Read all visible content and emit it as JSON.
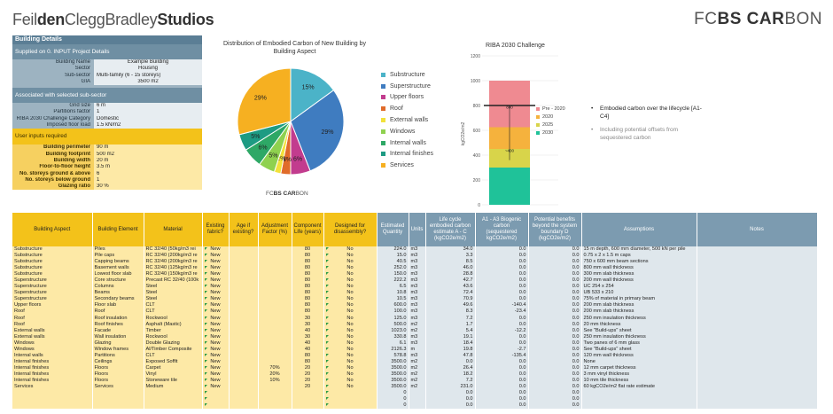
{
  "brand": {
    "left_parts": [
      "Feil",
      "den",
      "Clegg",
      "Bradley",
      "Studios"
    ],
    "right_light": "FC",
    "right_bold": "BS CAR",
    "right_tail": "BON"
  },
  "details": {
    "header": "Building Details",
    "supplied_note": "Supplied on 0. INPUT Project Details",
    "building": [
      {
        "k": "Building Name",
        "v": "Example Building",
        "center": true
      },
      {
        "k": "Sector",
        "v": "Housing",
        "center": true
      },
      {
        "k": "Sub-sector",
        "v": "Multi-family (6 - 15 storeys)",
        "center": false
      },
      {
        "k": "GIA",
        "v": "3500  m2",
        "center": true
      }
    ],
    "assoc_note": "Associated with selected sub-sector",
    "subsector": [
      {
        "k": "Grid size",
        "v": "6  m"
      },
      {
        "k": "Partitions factor",
        "v": "1"
      },
      {
        "k": "RIBA 2030 Challenge Category",
        "v": "Domestic"
      },
      {
        "k": "Imposed floor load",
        "v": "1.5  kN/m2"
      }
    ],
    "user_note": "User inputs required",
    "user_inputs": [
      {
        "k": "Building perimeter",
        "v": "90  m"
      },
      {
        "k": "Building footprint",
        "v": "500  m2"
      },
      {
        "k": "Building width",
        "v": "20  m"
      },
      {
        "k": "Floor-to-floor height",
        "v": "3.5  m"
      },
      {
        "k": "No. storeys ground & above",
        "v": "6"
      },
      {
        "k": "No. storeys below ground",
        "v": "1"
      },
      {
        "k": "Glazing ratio",
        "v": "30  %"
      }
    ]
  },
  "pie": {
    "title": "Distribution of Embodied Carbon of New Building by Building Aspect",
    "footer_light": "FC",
    "footer_bold": "BS CAR",
    "footer_tail": "BON",
    "slice_labels": [
      "15%",
      "29%",
      "6%",
      "3%",
      "2%",
      "5%",
      "6%",
      "5%",
      "29%"
    ]
  },
  "chart_data": [
    {
      "type": "pie",
      "title": "Distribution of Embodied Carbon of New Building by Building Aspect",
      "categories": [
        "Substructure",
        "Superstructure",
        "Upper floors",
        "Roof",
        "External walls",
        "Windows",
        "Internal walls",
        "Internal finishes",
        "Services"
      ],
      "values": [
        15,
        29,
        6,
        3,
        2,
        5,
        6,
        5,
        29
      ],
      "colors": [
        "#4bb3c8",
        "#3f7cc0",
        "#c23c8e",
        "#e06b2a",
        "#f2e13a",
        "#8fd14f",
        "#2ea866",
        "#1d9b83",
        "#f6b021"
      ]
    },
    {
      "type": "bar",
      "title": "RIBA 2030 Challenge",
      "ylabel": "kgCO2e/m2",
      "ylim": [
        0,
        1200
      ],
      "yticks": [
        0,
        200,
        400,
        600,
        800,
        1000,
        1200
      ],
      "series": [
        {
          "name": "Pre - 2020",
          "value": 1000,
          "color": "#ef8a91"
        },
        {
          "name": "2020",
          "value": 625,
          "color": "#f5b23d"
        },
        {
          "name": "2025",
          "value": 450,
          "color": "#d8d44a"
        },
        {
          "name": "2030",
          "value": 300,
          "color": "#1fc299"
        }
      ],
      "labels": [
        "800",
        "~400"
      ],
      "marker_value": 800
    }
  ],
  "riba": {
    "title": "RIBA 2030 Challenge",
    "ylabel": "kgCO2e/m2",
    "legend": [
      "Pre - 2020",
      "2020",
      "2025",
      "2030"
    ]
  },
  "notes": {
    "n1": "Embodied carbon over the lifecycle [A1-C4]",
    "n2": "Including potential offsets from sequestered carbon"
  },
  "table": {
    "headers": [
      "Building Aspect",
      "Building Element",
      "Material",
      "Existing fabric?",
      "Age if existing?",
      "Adjustment Factor (%)",
      "Component Life (years)",
      "Designed for disassembly?",
      "Estimated Quantity",
      "Units",
      "Life cycle embodied carbon estimate A - C (kgCO2e/m2)",
      "A1 - A3 Biogenic carbon (sequestered kgCO2e/m2)",
      "Potential benefits beyond the system boundary D (kgCO2e/m2)",
      "Assumptions",
      "Notes"
    ],
    "rows": [
      [
        "Substructure",
        "Piles",
        "RC 32/40 (50kg/m3 rei",
        "New",
        "",
        "",
        "80",
        "No",
        "224.0",
        "m3",
        "34.0",
        "0.0",
        "0.0",
        "15 m depth, 600 mm diameter, 500 kN per pile"
      ],
      [
        "Substructure",
        "Pile caps",
        "RC 32/40 (200kg/m3 re",
        "New",
        "",
        "",
        "80",
        "No",
        "15.0",
        "m3",
        "3.3",
        "0.0",
        "0.0",
        "0.75 x 2 x 1.5 m caps"
      ],
      [
        "Substructure",
        "Capping beams",
        "RC 32/40 (200kg/m3 re",
        "New",
        "",
        "",
        "80",
        "No",
        "40.5",
        "m3",
        "8.5",
        "0.0",
        "0.0",
        "750 x 600 mm beam sections"
      ],
      [
        "Substructure",
        "Basement walls",
        "RC 32/40 (125kg/m3 re",
        "New",
        "",
        "",
        "80",
        "No",
        "252.0",
        "m3",
        "46.0",
        "0.0",
        "0.0",
        "800 mm wall thickness"
      ],
      [
        "Substructure",
        "Lowest floor slab",
        "RC 32/40 (150kg/m3 re",
        "New",
        "",
        "",
        "80",
        "No",
        "150.0",
        "m3",
        "28.8",
        "0.0",
        "0.0",
        "300 mm slab thickness"
      ],
      [
        "Superstructure",
        "Core structure",
        "Precast RC 32/40 (100k",
        "New",
        "",
        "",
        "80",
        "No",
        "222.2",
        "m3",
        "42.7",
        "0.0",
        "0.0",
        "200 mm wall thickness"
      ],
      [
        "Superstructure",
        "Columns",
        "Steel",
        "New",
        "",
        "",
        "80",
        "No",
        "6.5",
        "m3",
        "43.6",
        "0.0",
        "0.0",
        "UC 254 x 254"
      ],
      [
        "Superstructure",
        "Beams",
        "Steel",
        "New",
        "",
        "",
        "80",
        "No",
        "10.8",
        "m3",
        "72.4",
        "0.0",
        "0.0",
        "UB 533 x 210"
      ],
      [
        "Superstructure",
        "Secondary beams",
        "Steel",
        "New",
        "",
        "",
        "80",
        "No",
        "10.5",
        "m3",
        "70.9",
        "0.0",
        "0.0",
        "75% of material in primary beam"
      ],
      [
        "Upper floors",
        "Floor slab",
        "CLT",
        "New",
        "",
        "",
        "80",
        "No",
        "600.0",
        "m3",
        "49.6",
        "-140.4",
        "0.0",
        "200 mm slab thickness"
      ],
      [
        "Roof",
        "Roof",
        "CLT",
        "New",
        "",
        "",
        "80",
        "No",
        "100.0",
        "m3",
        "8.3",
        "-23.4",
        "0.0",
        "200 mm slab thickness"
      ],
      [
        "Roof",
        "Roof insulation",
        "Rockwool",
        "New",
        "",
        "",
        "30",
        "No",
        "125.0",
        "m3",
        "7.2",
        "0.0",
        "0.0",
        "250 mm insulation thickness"
      ],
      [
        "Roof",
        "Roof finishes",
        "Asphalt (Mastic)",
        "New",
        "",
        "",
        "30",
        "No",
        "500.0",
        "m2",
        "1.7",
        "0.0",
        "0.0",
        "20 mm thickness"
      ],
      [
        "External walls",
        "Facade",
        "Timber",
        "New",
        "",
        "",
        "40",
        "No",
        "1023.0",
        "m2",
        "5.4",
        "-12.2",
        "0.0",
        "See \"Build-ups\" sheet"
      ],
      [
        "External walls",
        "Wall insulation",
        "Rockwool",
        "New",
        "",
        "",
        "30",
        "No",
        "330.8",
        "m3",
        "19.1",
        "0.0",
        "0.0",
        "250 mm insulation thickness"
      ],
      [
        "Windows",
        "Glazing",
        "Double Glazing",
        "New",
        "",
        "",
        "40",
        "No",
        "6.1",
        "m3",
        "18.4",
        "0.0",
        "0.0",
        "Two panes of 6 mm glass"
      ],
      [
        "Windows",
        "Window frames",
        "Al/Timber Composite",
        "New",
        "",
        "",
        "40",
        "No",
        "2126.3",
        "m",
        "19.8",
        "-2.7",
        "0.0",
        "See \"Build-ups\" sheet"
      ],
      [
        "Internal walls",
        "Partitions",
        "CLT",
        "New",
        "",
        "",
        "80",
        "No",
        "578.8",
        "m3",
        "47.8",
        "-135.4",
        "0.0",
        "120 mm wall thickness"
      ],
      [
        "Internal finishes",
        "Ceilings",
        "Exposed Soffit",
        "New",
        "",
        "",
        "80",
        "No",
        "3500.0",
        "m2",
        "0.0",
        "0.0",
        "0.0",
        "None"
      ],
      [
        "Internal finishes",
        "Floors",
        "Carpet",
        "New",
        "",
        "70%",
        "20",
        "No",
        "3500.0",
        "m2",
        "26.4",
        "0.0",
        "0.0",
        "12 mm carpet thickness"
      ],
      [
        "Internal finishes",
        "Floors",
        "Vinyl",
        "New",
        "",
        "20%",
        "20",
        "No",
        "3500.0",
        "m2",
        "18.2",
        "0.0",
        "0.0",
        "3 mm vinyl thickness"
      ],
      [
        "Internal finishes",
        "Floors",
        "Stoneware tile",
        "New",
        "",
        "10%",
        "20",
        "No",
        "3500.0",
        "m2",
        "7.2",
        "0.0",
        "0.0",
        "10 mm tile thickness"
      ],
      [
        "Services",
        "Services",
        "Medium",
        "New",
        "",
        "",
        "20",
        "No",
        "3500.0",
        "m2",
        "231.0",
        "0.0",
        "0.0",
        "60 kgCO2e/m2 flat rate estimate"
      ],
      [
        "",
        "",
        "",
        "",
        "",
        "",
        "",
        "",
        "0",
        "",
        "0.0",
        "0.0",
        "0.0",
        ""
      ],
      [
        "",
        "",
        "",
        "",
        "",
        "",
        "",
        "",
        "0",
        "",
        "0.0",
        "0.0",
        "0.0",
        ""
      ],
      [
        "",
        "",
        "",
        "",
        "",
        "",
        "",
        "",
        "0",
        "",
        "0.0",
        "0.0",
        "0.0",
        ""
      ]
    ]
  }
}
